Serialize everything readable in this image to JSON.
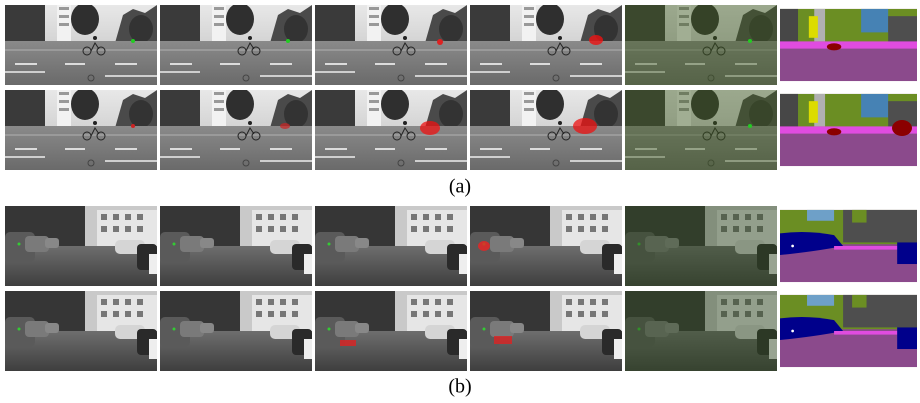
{
  "figure": {
    "captions": [
      "(a)",
      "(b)"
    ]
  }
}
